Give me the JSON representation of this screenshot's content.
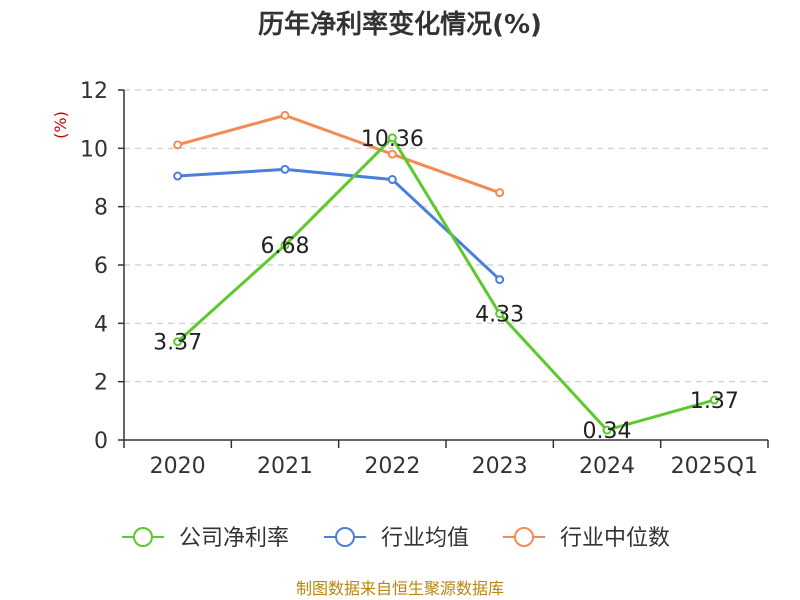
{
  "chart_data": {
    "type": "line",
    "title": "历年净利率变化情况(%)",
    "ylabel": "(%)",
    "xlabel": "",
    "categories": [
      "2020",
      "2021",
      "2022",
      "2023",
      "2024",
      "2025Q1"
    ],
    "ylim": [
      0,
      12
    ],
    "yticks": [
      0,
      2,
      4,
      6,
      8,
      10,
      12
    ],
    "grid": true,
    "legend_position": "bottom-center",
    "series": [
      {
        "name": "公司净利率",
        "color": "#5dc92c",
        "values": [
          3.37,
          6.68,
          10.36,
          4.33,
          0.34,
          1.37
        ],
        "data_labels": [
          "3.37",
          "6.68",
          "10.36",
          "4.33",
          "0.34",
          "1.37"
        ]
      },
      {
        "name": "行业均值",
        "color": "#4a7fdc",
        "values": [
          9.05,
          9.28,
          8.93,
          5.5,
          null,
          null
        ]
      },
      {
        "name": "行业中位数",
        "color": "#f38b53",
        "values": [
          10.12,
          11.13,
          9.8,
          8.48,
          null,
          null
        ]
      }
    ]
  },
  "source_text": "制图数据来自恒生聚源数据库",
  "colors": {
    "unit": "#cc0000",
    "source": "#b8860b",
    "axis": "#333333",
    "grid": "#cccccc"
  }
}
